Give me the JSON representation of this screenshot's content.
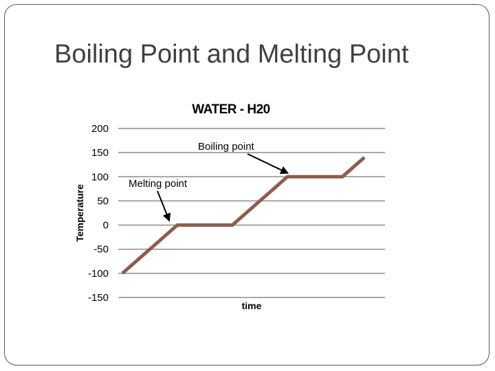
{
  "slide": {
    "title": "Boiling Point and Melting Point"
  },
  "chart_data": {
    "type": "line",
    "title": "WATER - H20",
    "xlabel": "time",
    "ylabel": "Temperature",
    "ylim": [
      -150,
      200
    ],
    "yticks": [
      200,
      150,
      100,
      50,
      0,
      -50,
      -100,
      -150
    ],
    "grid": true,
    "series": [
      {
        "color": "#8B5E4E",
        "points": [
          {
            "x": 0,
            "y": -100
          },
          {
            "x": 1,
            "y": 0
          },
          {
            "x": 2,
            "y": 0
          },
          {
            "x": 3,
            "y": 100
          },
          {
            "x": 4,
            "y": 100
          },
          {
            "x": 4.4,
            "y": 140
          }
        ]
      }
    ],
    "annotations": [
      {
        "text": "Melting point",
        "target": {
          "x": 0.85,
          "y": 10
        }
      },
      {
        "text": "Boiling point",
        "target": {
          "x": 3.0,
          "y": 108
        }
      }
    ]
  }
}
